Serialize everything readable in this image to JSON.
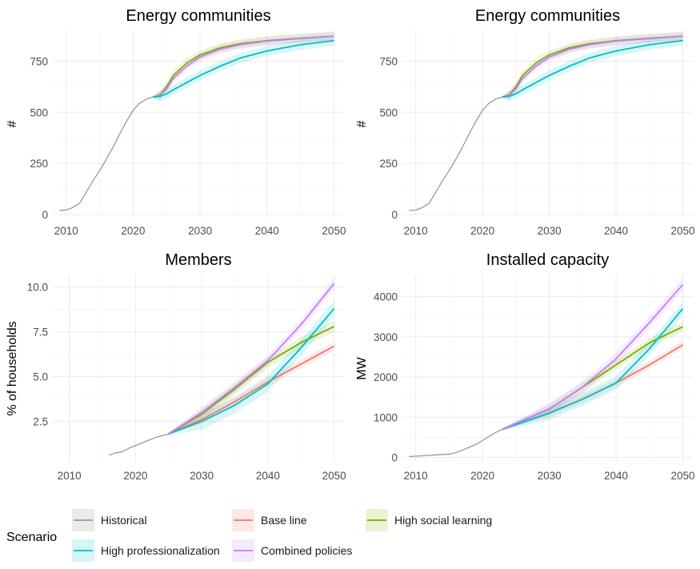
{
  "colors": {
    "Historical": "#999999",
    "Base line": "#F8766D",
    "High social learning": "#7CAE00",
    "High professionalization": "#00BFC4",
    "Combined policies": "#C77CFF"
  },
  "legend": {
    "title": "Scenario",
    "position": "bottom",
    "items": [
      "Historical",
      "Base line",
      "High social learning",
      "High professionalization",
      "Combined policies"
    ]
  },
  "chart_data": [
    {
      "type": "line",
      "title": "Energy communities",
      "xlabel": "",
      "ylabel": "#",
      "xlim": [
        2008,
        2051.5
      ],
      "ylim": [
        -15,
        900
      ],
      "xticks": [
        2010,
        2020,
        2030,
        2040,
        2050
      ],
      "yticks": [
        0,
        250,
        500,
        750
      ],
      "series": [
        {
          "name": "Historical",
          "x": [
            2009,
            2010,
            2011,
            2012,
            2013,
            2014,
            2015,
            2016,
            2017,
            2018,
            2019,
            2020,
            2021,
            2022,
            2023
          ],
          "values": [
            20,
            22,
            35,
            55,
            110,
            165,
            215,
            270,
            330,
            395,
            455,
            510,
            545,
            565,
            575
          ]
        },
        {
          "name": "High social learning",
          "x": [
            2023,
            2024,
            2025,
            2026,
            2028,
            2030,
            2033,
            2036,
            2040,
            2045,
            2050
          ],
          "values": [
            575,
            585,
            625,
            680,
            740,
            780,
            815,
            835,
            850,
            862,
            872
          ],
          "band": 22
        },
        {
          "name": "Combined policies",
          "x": [
            2023,
            2024,
            2025,
            2026,
            2028,
            2030,
            2033,
            2036,
            2040,
            2045,
            2050
          ],
          "values": [
            575,
            583,
            615,
            665,
            725,
            770,
            808,
            830,
            848,
            860,
            872
          ],
          "band": 20
        },
        {
          "name": "High professionalization",
          "x": [
            2023,
            2024,
            2025,
            2026,
            2028,
            2030,
            2033,
            2036,
            2040,
            2045,
            2050
          ],
          "values": [
            575,
            578,
            590,
            610,
            645,
            680,
            725,
            765,
            800,
            830,
            850
          ],
          "band": 25
        }
      ]
    },
    {
      "type": "line",
      "title": "Energy communities",
      "xlabel": "",
      "ylabel": "#",
      "xlim": [
        2008,
        2051.5
      ],
      "ylim": [
        -15,
        900
      ],
      "xticks": [
        2010,
        2020,
        2030,
        2040,
        2050
      ],
      "yticks": [
        0,
        250,
        500,
        750
      ],
      "series": [
        {
          "name": "Historical",
          "x": [
            2009,
            2010,
            2011,
            2012,
            2013,
            2014,
            2015,
            2016,
            2017,
            2018,
            2019,
            2020,
            2021,
            2022,
            2023
          ],
          "values": [
            20,
            22,
            35,
            55,
            110,
            165,
            215,
            270,
            330,
            395,
            455,
            510,
            545,
            565,
            575
          ]
        },
        {
          "name": "High social learning",
          "x": [
            2023,
            2024,
            2025,
            2026,
            2028,
            2030,
            2033,
            2036,
            2040,
            2045,
            2050
          ],
          "values": [
            575,
            585,
            625,
            680,
            740,
            780,
            815,
            835,
            850,
            862,
            872
          ],
          "band": 22
        },
        {
          "name": "Combined policies",
          "x": [
            2023,
            2024,
            2025,
            2026,
            2028,
            2030,
            2033,
            2036,
            2040,
            2045,
            2050
          ],
          "values": [
            575,
            583,
            615,
            665,
            725,
            770,
            808,
            830,
            848,
            860,
            872
          ],
          "band": 20
        },
        {
          "name": "High professionalization",
          "x": [
            2023,
            2024,
            2025,
            2026,
            2028,
            2030,
            2033,
            2036,
            2040,
            2045,
            2050
          ],
          "values": [
            575,
            578,
            590,
            610,
            645,
            680,
            725,
            765,
            800,
            830,
            850
          ],
          "band": 25
        }
      ]
    },
    {
      "type": "line",
      "title": "Members",
      "xlabel": "",
      "ylabel": "% of households",
      "xlim": [
        2007.5,
        2051.5
      ],
      "ylim": [
        0.2,
        10.7
      ],
      "xticks": [
        2010,
        2020,
        2030,
        2040,
        2050
      ],
      "yticks": [
        2.5,
        5.0,
        7.5,
        10.0
      ],
      "yticklabels": [
        "2.5",
        "5.0",
        "7.5",
        "10.0"
      ],
      "series": [
        {
          "name": "Historical",
          "x": [
            2016,
            2017,
            2018,
            2019,
            2020,
            2021,
            2022,
            2023,
            2024,
            2025
          ],
          "values": [
            0.6,
            0.75,
            0.8,
            1.0,
            1.15,
            1.3,
            1.45,
            1.6,
            1.7,
            1.8
          ]
        },
        {
          "name": "Base line",
          "x": [
            2025,
            2030,
            2035,
            2040,
            2045,
            2050
          ],
          "values": [
            1.8,
            2.6,
            3.6,
            4.7,
            5.7,
            6.7
          ],
          "band": 0.25
        },
        {
          "name": "High social learning",
          "x": [
            2025,
            2030,
            2035,
            2040,
            2045,
            2050
          ],
          "values": [
            1.8,
            2.9,
            4.3,
            5.8,
            6.9,
            7.8
          ],
          "band": 0.3
        },
        {
          "name": "High professionalization",
          "x": [
            2025,
            2030,
            2035,
            2040,
            2045,
            2050
          ],
          "values": [
            1.8,
            2.5,
            3.4,
            4.6,
            6.6,
            8.8
          ],
          "band": 0.45
        },
        {
          "name": "Combined policies",
          "x": [
            2025,
            2030,
            2035,
            2040,
            2045,
            2050
          ],
          "values": [
            1.8,
            3.0,
            4.4,
            5.9,
            7.9,
            10.2
          ],
          "band": 0.3
        }
      ]
    },
    {
      "type": "line",
      "title": "Installed capacity",
      "xlabel": "",
      "ylabel": "MW",
      "xlim": [
        2008,
        2051.5
      ],
      "ylim": [
        -130,
        4550
      ],
      "xticks": [
        2010,
        2020,
        2030,
        2040,
        2050
      ],
      "yticks": [
        0,
        1000,
        2000,
        3000,
        4000
      ],
      "series": [
        {
          "name": "Historical",
          "x": [
            2009,
            2010,
            2011,
            2012,
            2013,
            2014,
            2015,
            2016,
            2017,
            2018,
            2019,
            2020,
            2021,
            2022,
            2023
          ],
          "values": [
            20,
            30,
            40,
            50,
            60,
            70,
            80,
            120,
            180,
            250,
            320,
            420,
            520,
            620,
            700
          ]
        },
        {
          "name": "Base line",
          "x": [
            2023,
            2030,
            2035,
            2040,
            2045,
            2050
          ],
          "values": [
            700,
            1100,
            1450,
            1850,
            2300,
            2800
          ],
          "band": 100
        },
        {
          "name": "High social learning",
          "x": [
            2023,
            2030,
            2035,
            2040,
            2045,
            2050
          ],
          "values": [
            700,
            1200,
            1750,
            2300,
            2850,
            3250
          ],
          "band": 120
        },
        {
          "name": "High professionalization",
          "x": [
            2023,
            2030,
            2035,
            2040,
            2045,
            2050
          ],
          "values": [
            700,
            1100,
            1450,
            1850,
            2700,
            3700
          ],
          "band": 170
        },
        {
          "name": "Combined policies",
          "x": [
            2023,
            2030,
            2035,
            2040,
            2045,
            2050
          ],
          "values": [
            700,
            1200,
            1750,
            2450,
            3350,
            4300
          ],
          "band": 150
        }
      ]
    }
  ]
}
